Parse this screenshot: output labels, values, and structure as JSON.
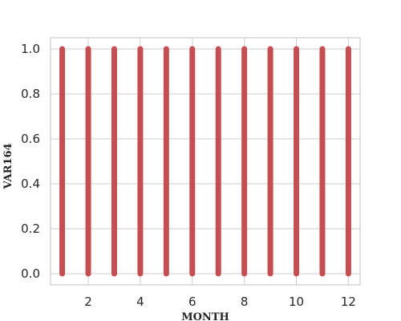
{
  "chart_data": {
    "type": "scatter",
    "title": "",
    "xlabel": "MONTH",
    "ylabel": "VAR164",
    "xlim": [
      0.55,
      12.45
    ],
    "ylim": [
      -0.05,
      1.05
    ],
    "xticks": [
      2,
      4,
      6,
      8,
      10,
      12
    ],
    "yticks": [
      0.0,
      0.2,
      0.4,
      0.6,
      0.8,
      1.0
    ],
    "ytick_labels": [
      "0.0",
      "0.2",
      "0.4",
      "0.6",
      "0.8",
      "1.0"
    ],
    "grid": true,
    "series": [
      {
        "color": "#c44e52",
        "x": [
          1,
          2,
          3,
          4,
          5,
          6,
          7,
          8,
          9,
          10,
          11,
          12
        ],
        "y_min": [
          0.0,
          0.0,
          0.0,
          0.0,
          0.0,
          0.0,
          0.0,
          0.0,
          0.0,
          0.0,
          0.0,
          0.0
        ],
        "y_max": [
          1.0,
          1.0,
          1.0,
          1.0,
          1.0,
          1.0,
          1.0,
          1.0,
          1.0,
          1.0,
          1.0,
          1.0
        ]
      }
    ]
  }
}
